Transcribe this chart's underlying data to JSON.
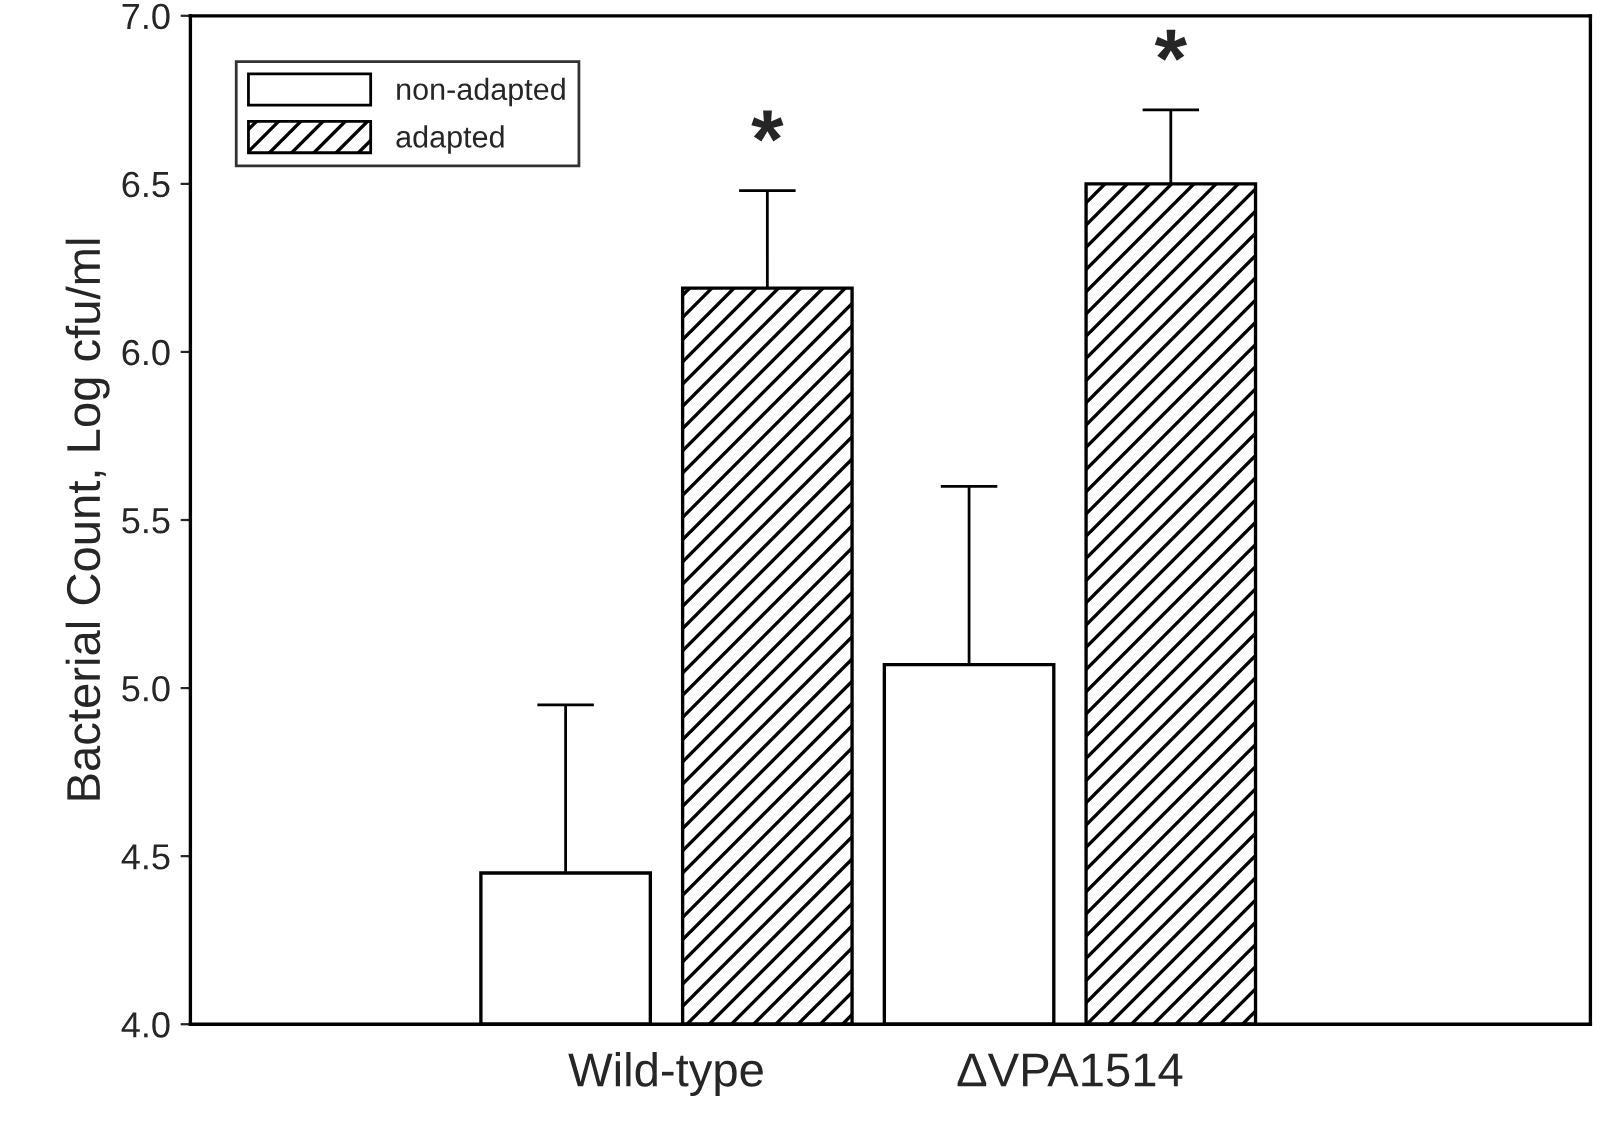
{
  "chart_data": {
    "type": "bar",
    "ylabel": "Bacterial Count, Log cfu/ml",
    "categories": [
      "Wild-type",
      "ΔVPA1514"
    ],
    "series": [
      {
        "name": "non-adapted",
        "color": "#ffffff",
        "values": [
          4.45,
          5.07
        ],
        "errors": [
          [
            4.45,
            4.95
          ],
          [
            5.07,
            5.6
          ]
        ]
      },
      {
        "name": "adapted",
        "color": "#000000",
        "values": [
          6.19,
          6.5
        ],
        "errors": [
          [
            6.19,
            6.48
          ],
          [
            6.5,
            6.72
          ]
        ]
      }
    ],
    "ylim": [
      4.0,
      7.0
    ],
    "yticks": [
      {
        "value": 4.0,
        "label": "4.0"
      },
      {
        "value": 4.5,
        "label": "4.5"
      },
      {
        "value": 5.0,
        "label": "5.0"
      },
      {
        "value": 5.5,
        "label": "5.5"
      },
      {
        "value": 6.0,
        "label": "6.0"
      },
      {
        "value": 6.5,
        "label": "6.5"
      },
      {
        "value": 7.0,
        "label": "7.0"
      }
    ],
    "legend": "top left",
    "annotations": [
      "*",
      "*"
    ]
  }
}
